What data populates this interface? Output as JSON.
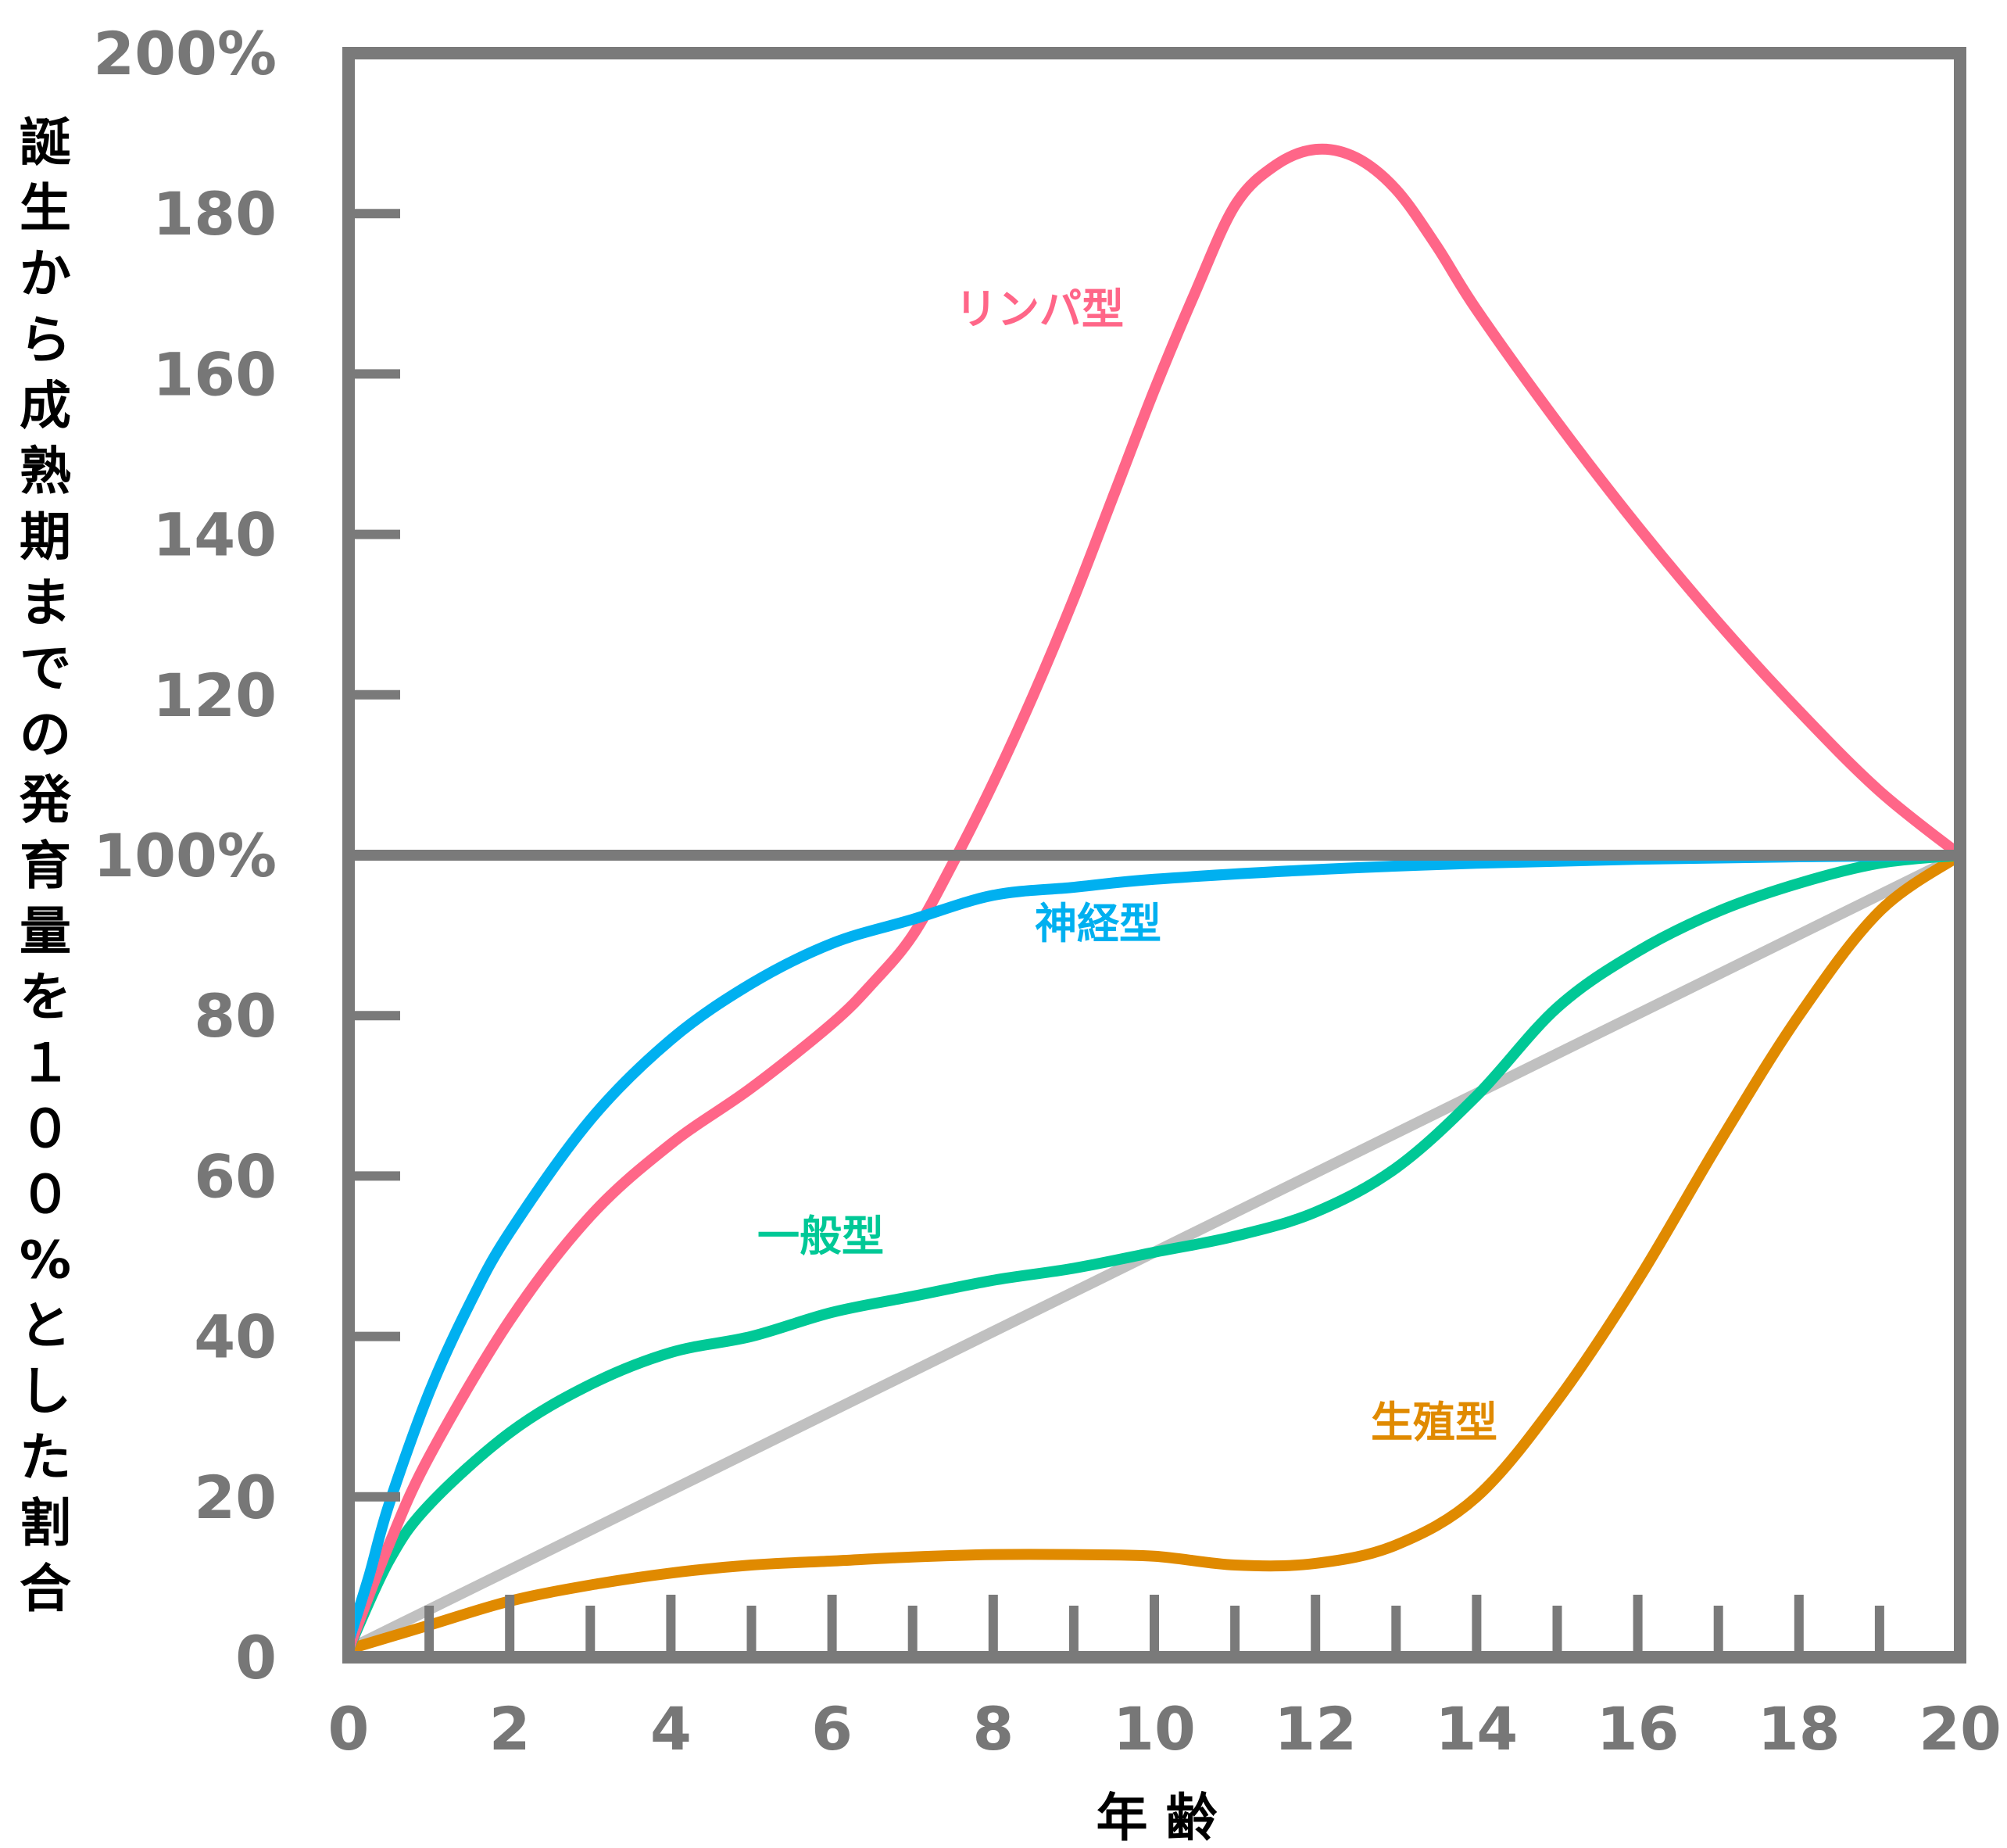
{
  "chart_data": {
    "type": "line",
    "xlabel": "年 齢",
    "ylabel": "誕生から成熟期までの発育量を１００%とした割合",
    "xlim": [
      0,
      20
    ],
    "ylim": [
      0,
      200
    ],
    "x_ticks": [
      0,
      2,
      4,
      6,
      8,
      10,
      12,
      14,
      16,
      18,
      20
    ],
    "x_tick_labels": [
      "0",
      "2",
      "4",
      "6",
      "8",
      "10",
      "12",
      "14",
      "16",
      "18",
      "20"
    ],
    "y_ticks": [
      0,
      20,
      40,
      60,
      80,
      100,
      120,
      140,
      160,
      180,
      200
    ],
    "y_tick_labels": [
      "0",
      "20",
      "40",
      "60",
      "80",
      "100%",
      "120",
      "140",
      "160",
      "180",
      "200%"
    ],
    "reference_line": 100,
    "grid": false,
    "legend": "inline labels",
    "colors": {
      "axis": "#7a7a7a",
      "lymph": "#ff6688",
      "neural": "#00b0f0",
      "general": "#00c896",
      "reproductive": "#e08a00",
      "diagonal": "#c0c0c0"
    },
    "series": [
      {
        "name": "リンパ型",
        "key": "lymph",
        "x": [
          0,
          0.5,
          1,
          2,
          3,
          4,
          5,
          6,
          6.5,
          7,
          7.5,
          8,
          8.5,
          9,
          9.5,
          10,
          10.5,
          11,
          11.5,
          12,
          12.5,
          13,
          13.5,
          14,
          15,
          16,
          17,
          18,
          19,
          20
        ],
        "y": [
          1,
          14,
          25,
          42,
          55,
          64,
          71,
          79,
          84,
          90,
          99,
          109,
          120,
          132,
          145,
          158,
          170,
          181,
          186,
          188,
          187,
          183,
          176,
          168,
          154,
          141,
          129,
          118,
          108,
          100
        ]
      },
      {
        "name": "神経型",
        "key": "neural",
        "x": [
          0,
          0.25,
          0.5,
          1,
          1.5,
          2,
          3,
          4,
          5,
          6,
          7,
          8,
          9,
          10,
          12,
          14,
          16,
          18,
          20
        ],
        "y": [
          2,
          10,
          19,
          33,
          44,
          53,
          67,
          77,
          84,
          89,
          92,
          95,
          96,
          97,
          98.2,
          99,
          99.5,
          99.8,
          100
        ]
      },
      {
        "name": "一般型",
        "key": "general",
        "x": [
          0,
          0.5,
          1,
          2,
          3,
          4,
          5,
          6,
          7,
          8,
          9,
          10,
          11,
          12,
          13,
          14,
          15,
          16,
          17,
          18,
          19,
          20
        ],
        "y": [
          1,
          12,
          19,
          28,
          34,
          38,
          40,
          43,
          45,
          47,
          48.5,
          50.5,
          52.5,
          55.5,
          61,
          70,
          81,
          88,
          93,
          96.5,
          99,
          100
        ]
      },
      {
        "name": "生殖型",
        "key": "reproductive",
        "x": [
          0,
          1,
          2,
          3,
          4,
          5,
          6,
          7,
          8,
          9,
          10,
          11,
          12,
          13,
          14,
          15,
          16,
          17,
          18,
          19,
          20
        ],
        "y": [
          1,
          4,
          7,
          9,
          10.5,
          11.5,
          12,
          12.5,
          12.8,
          12.8,
          12.6,
          11.5,
          11.7,
          14,
          20,
          32,
          47,
          64,
          80,
          93,
          100
        ]
      },
      {
        "key": "diagonal",
        "x": [
          0,
          20
        ],
        "y": [
          1,
          100
        ]
      }
    ],
    "series_labels": [
      {
        "key": "lymph",
        "text": "リンパ型"
      },
      {
        "key": "neural",
        "text": "神経型"
      },
      {
        "key": "general",
        "text": "一般型"
      },
      {
        "key": "reproductive",
        "text": "生殖型"
      }
    ]
  }
}
